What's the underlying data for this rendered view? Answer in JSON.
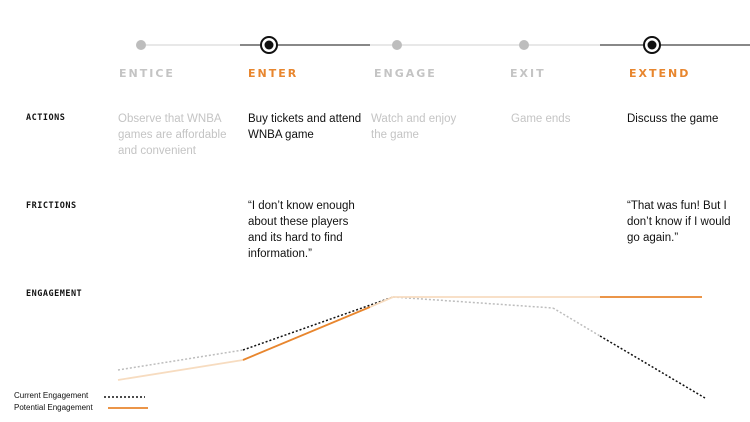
{
  "stages": [
    {
      "label": "ENTICE",
      "active": false
    },
    {
      "label": "ENTER",
      "active": true
    },
    {
      "label": "ENGAGE",
      "active": false
    },
    {
      "label": "EXIT",
      "active": false
    },
    {
      "label": "EXTEND",
      "active": true
    }
  ],
  "rows": {
    "actions": "ACTIONS",
    "frictions": "FRICTIONS",
    "engagement": "ENGAGEMENT"
  },
  "actions": [
    "Observe that WNBA games are affordable and convenient",
    "Buy tickets and attend WNBA game",
    "Watch and enjoy the game",
    "Game ends",
    "Discuss the game"
  ],
  "frictions": [
    "",
    "“I don’t know enough about these players and its hard to find information.”",
    "",
    "",
    "“That was fun! But I don’t know if I would go again.”"
  ],
  "legend": {
    "current": "Current  Engagement",
    "potential": "Potential Engagement"
  },
  "colors": {
    "accent": "#e8862e",
    "accent_light": "#f7dcc0",
    "inactive": "#bdbdbd",
    "text": "#111111",
    "muted": "#c4c4c4"
  }
}
